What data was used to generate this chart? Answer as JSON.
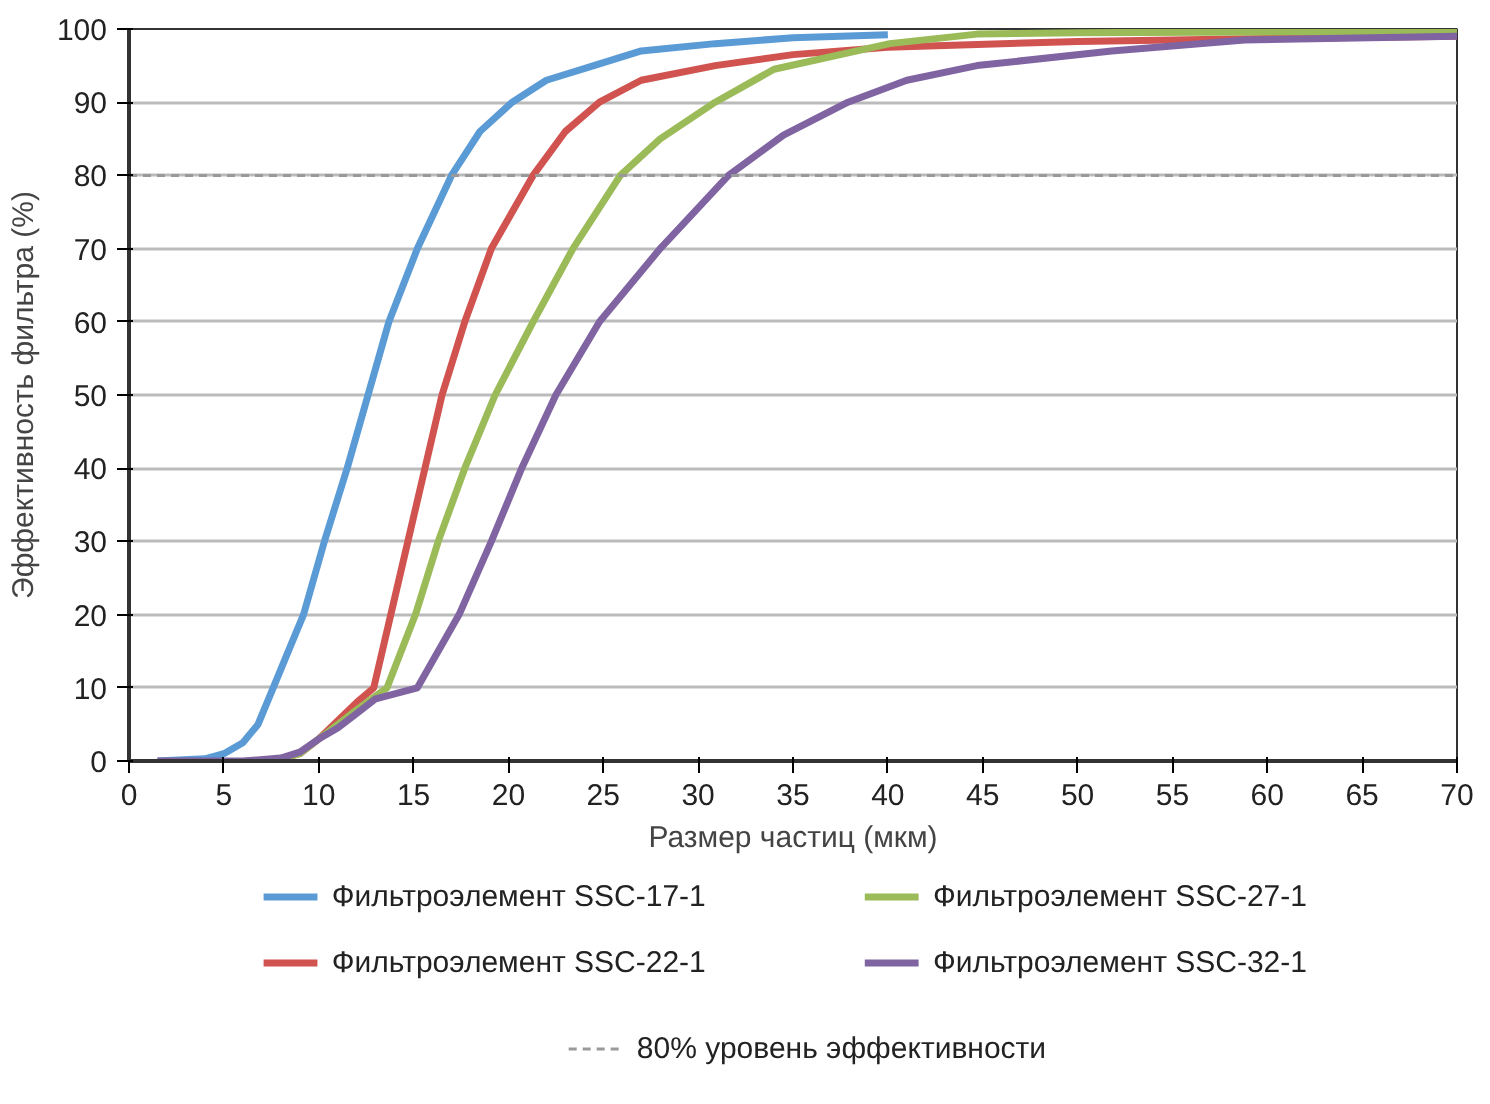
{
  "chart_data": {
    "type": "line",
    "xlabel": "Размер частиц (мкм)",
    "ylabel": "Эффективность фильтра (%)",
    "xlim": [
      0,
      70
    ],
    "ylim": [
      0,
      100
    ],
    "xticks": [
      0,
      5,
      10,
      15,
      20,
      25,
      30,
      35,
      40,
      45,
      50,
      55,
      60,
      65,
      70
    ],
    "yticks": [
      0,
      10,
      20,
      30,
      40,
      50,
      60,
      70,
      80,
      90,
      100
    ],
    "grid": "y",
    "legend": "bottom",
    "marker": "none",
    "line_style": "solid",
    "series": [
      {
        "name": "Фильтроэлемент SSC-17-1",
        "color": "#5b9bd5",
        "x": [
          1.5,
          4,
          5,
          6,
          6.8,
          7.6,
          8.4,
          9.2,
          10.3,
          11.5,
          12.6,
          13.7,
          15.2,
          17,
          18.5,
          20.2,
          22,
          24.5,
          27,
          30.9,
          35,
          40
        ],
        "values": [
          0,
          0.3,
          1,
          2.5,
          5,
          10,
          15,
          20,
          30,
          40,
          50,
          60,
          70,
          80,
          86,
          90,
          93,
          95,
          97,
          98,
          98.8,
          99.2
        ]
      },
      {
        "name": "Фильтроэлемент SSC-22-1",
        "color": "#d0534f",
        "x": [
          8,
          9,
          10,
          11,
          12,
          12.9,
          13.8,
          14.7,
          15.6,
          16.5,
          17.7,
          19.1,
          21.3,
          23,
          24.8,
          27,
          30.9,
          35,
          40,
          50,
          60,
          70
        ],
        "values": [
          0.3,
          1,
          3,
          5.5,
          8,
          10,
          20,
          30,
          40,
          50,
          60,
          70,
          80,
          86,
          90,
          93,
          95,
          96.5,
          97.5,
          98.3,
          98.7,
          99
        ]
      },
      {
        "name": "Фильтроэлемент SSC-27-1",
        "color": "#9bbb59",
        "x": [
          8,
          9,
          10,
          11,
          12,
          13.6,
          15.1,
          16.3,
          17.7,
          19.3,
          21.3,
          23.4,
          25.9,
          28,
          30.9,
          34,
          40.1,
          44.7,
          50,
          60,
          70
        ],
        "values": [
          0.3,
          1,
          3,
          5,
          7,
          10,
          20,
          30,
          40,
          50,
          60,
          70,
          80,
          85,
          90,
          94.5,
          98,
          99.3,
          99.5,
          99.6,
          99.7
        ]
      },
      {
        "name": "Фильтроэлемент SSC-32-1",
        "color": "#8064a2",
        "x": [
          1.5,
          6,
          8,
          9,
          10,
          11,
          12,
          13,
          15.2,
          17.4,
          19.1,
          20.7,
          22.5,
          24.8,
          28,
          31.6,
          34.5,
          37.9,
          41,
          44.7,
          51.8,
          58.8,
          70
        ],
        "values": [
          0,
          0,
          0.4,
          1.2,
          3,
          4.5,
          6.5,
          8.5,
          10,
          20,
          30,
          40,
          50,
          60,
          70,
          80,
          85.5,
          90,
          93,
          95,
          97,
          98.5,
          99
        ]
      }
    ],
    "ref_lines": [
      {
        "axis": "y",
        "value": 80,
        "label": "80% уровень эффективности",
        "color": "#999999",
        "line_style": "dashed"
      }
    ]
  }
}
